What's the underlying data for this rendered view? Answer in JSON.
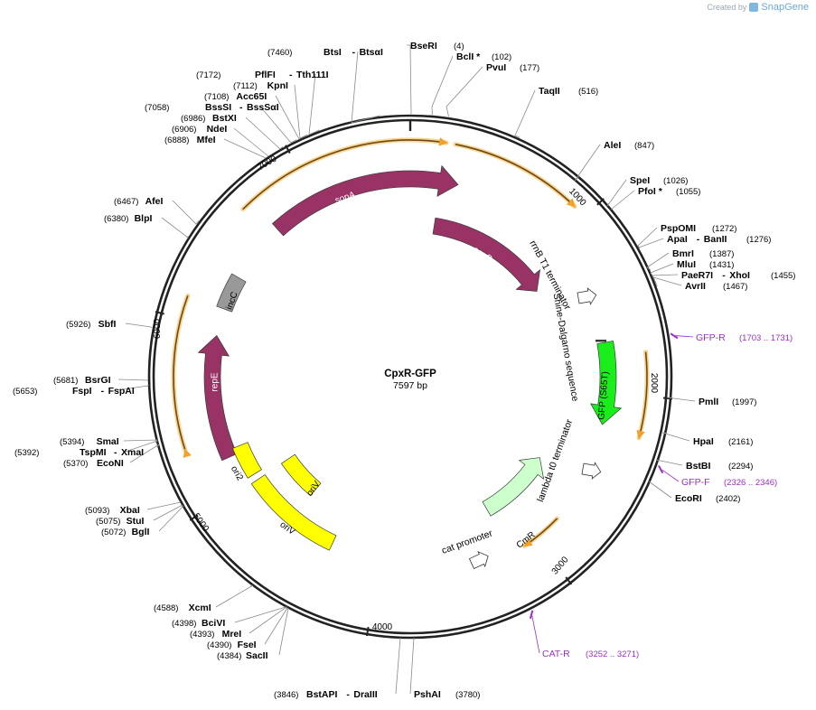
{
  "watermark": {
    "prefix": "Created by",
    "brand": "SnapGene"
  },
  "plasmid": {
    "name": "CpxR-GFP",
    "size_label": "7597 bp",
    "length": 7597
  },
  "ticks": [
    "1000",
    "2000",
    "3000",
    "4000",
    "5000",
    "6000",
    "7000"
  ],
  "enzymes": [
    {
      "id": "bseri",
      "name": "BseRI",
      "pos": "(4)"
    },
    {
      "id": "bcli",
      "name": "BclI *",
      "pos": "(102)"
    },
    {
      "id": "pvui",
      "name": "PvuI",
      "pos": "(177)"
    },
    {
      "id": "taqii",
      "name": "TaqII",
      "pos": "(516)"
    },
    {
      "id": "alei",
      "name": "AleI",
      "pos": "(847)"
    },
    {
      "id": "spei",
      "name": "SpeI",
      "pos": "(1026)"
    },
    {
      "id": "pfoi",
      "name": "PfoI *",
      "pos": "(1055)"
    },
    {
      "id": "pspomi",
      "name": "PspOMI",
      "pos": "(1272)"
    },
    {
      "id": "apai",
      "name": "ApaI",
      "iso": "BanII",
      "pos": "(1276)"
    },
    {
      "id": "bmri",
      "name": "BmrI",
      "pos": "(1387)"
    },
    {
      "id": "mlui",
      "name": "MluI",
      "pos": "(1431)"
    },
    {
      "id": "paer7i",
      "name": "PaeR7I",
      "iso": "XhoI",
      "pos": "(1455)"
    },
    {
      "id": "avrii",
      "name": "AvrII",
      "pos": "(1467)"
    },
    {
      "id": "pmli",
      "name": "PmlI",
      "pos": "(1997)"
    },
    {
      "id": "hpai",
      "name": "HpaI",
      "pos": "(2161)"
    },
    {
      "id": "bstbi",
      "name": "BstBI",
      "pos": "(2294)"
    },
    {
      "id": "ecori",
      "name": "EcoRI",
      "pos": "(2402)"
    },
    {
      "id": "pshai",
      "name": "PshAI",
      "pos": "(3780)"
    },
    {
      "id": "bstapi",
      "name": "BstAPI",
      "iso": "DraIII",
      "pos": "(3846)"
    },
    {
      "id": "sacii",
      "name": "SacII",
      "pos": "(4384)"
    },
    {
      "id": "fsei",
      "name": "FseI",
      "pos": "(4390)"
    },
    {
      "id": "mrei",
      "name": "MreI",
      "pos": "(4393)"
    },
    {
      "id": "bcivi",
      "name": "BciVI",
      "pos": "(4398)"
    },
    {
      "id": "xcmi",
      "name": "XcmI",
      "pos": "(4588)"
    },
    {
      "id": "bgli",
      "name": "BglI",
      "pos": "(5072)"
    },
    {
      "id": "stui",
      "name": "StuI",
      "pos": "(5075)"
    },
    {
      "id": "xbai",
      "name": "XbaI",
      "pos": "(5093)"
    },
    {
      "id": "econi",
      "name": "EcoNI",
      "pos": "(5370)"
    },
    {
      "id": "tspmi",
      "name": "TspMI",
      "iso": "XmaI",
      "pos": "(5392)"
    },
    {
      "id": "smai",
      "name": "SmaI",
      "pos": "(5394)"
    },
    {
      "id": "fspi",
      "name": "FspI",
      "iso": "FspAI",
      "pos": "(5653)"
    },
    {
      "id": "bsrgi",
      "name": "BsrGI",
      "pos": "(5681)"
    },
    {
      "id": "sbfi",
      "name": "SbfI",
      "pos": "(5926)"
    },
    {
      "id": "blpi",
      "name": "BlpI",
      "pos": "(6380)"
    },
    {
      "id": "afei",
      "name": "AfeI",
      "pos": "(6467)"
    },
    {
      "id": "mfei",
      "name": "MfeI",
      "pos": "(6888)"
    },
    {
      "id": "ndei",
      "name": "NdeI",
      "pos": "(6906)"
    },
    {
      "id": "bstxi",
      "name": "BstXI",
      "pos": "(6986)"
    },
    {
      "id": "bsssi",
      "name": "BssSI",
      "iso": "BssSαI",
      "pos": "(7058)"
    },
    {
      "id": "acc65i",
      "name": "Acc65I",
      "pos": "(7108)"
    },
    {
      "id": "kpni",
      "name": "KpnI",
      "pos": "(7112)"
    },
    {
      "id": "pflfi",
      "name": "PflFI",
      "iso": "Tth111I",
      "pos": "(7172)"
    },
    {
      "id": "btsi",
      "name": "BtsI",
      "iso": "BtsαI",
      "pos": "(7460)"
    }
  ],
  "primers": [
    {
      "id": "gfp-r",
      "name": "GFP-R",
      "range": "(1703 .. 1731)"
    },
    {
      "id": "gfp-f",
      "name": "GFP-F",
      "range": "(2326 .. 2346)"
    },
    {
      "id": "cat-r",
      "name": "CAT-R",
      "range": "(3252 .. 3271)"
    }
  ],
  "features": [
    {
      "id": "sopa",
      "label": "sopA",
      "color": "#993366"
    },
    {
      "id": "sopb",
      "label": "sopB",
      "color": "#993366"
    },
    {
      "id": "gfp",
      "label": "GFP (S65T)",
      "color": "#1aee1a"
    },
    {
      "id": "cmr",
      "label": "CmR",
      "color": "#ccffcc"
    },
    {
      "id": "repe",
      "label": "repE",
      "color": "#993366"
    },
    {
      "id": "incc",
      "label": "incC",
      "color": "#999999"
    },
    {
      "id": "ori2",
      "label": "ori2",
      "color": "#ffff00"
    },
    {
      "id": "oriv1",
      "label": "oriV",
      "color": "#ffff00"
    },
    {
      "id": "oriv2",
      "label": "oriV",
      "color": "#ffff00"
    }
  ],
  "annotations": [
    {
      "id": "rrnb",
      "label": "rrnB T1 terminator"
    },
    {
      "id": "shine",
      "label": "Shine-Dalgarno sequence"
    },
    {
      "id": "lambda",
      "label": "lambda t0 terminator"
    },
    {
      "id": "catp",
      "label": "cat promoter"
    }
  ],
  "colors": {
    "backbone": "#222222",
    "feature_arc": "#f3a12a",
    "primer": "#9b2fc7"
  }
}
